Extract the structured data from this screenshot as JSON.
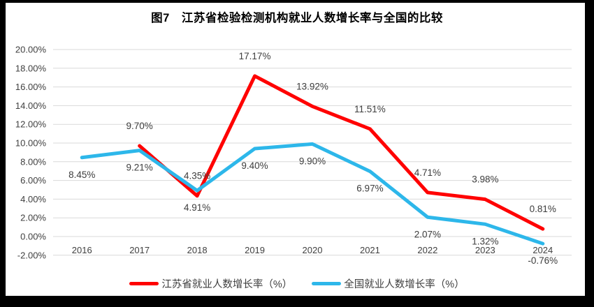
{
  "title": "图7　江苏省检验检测机构就业人数增长率与全国的比较",
  "chart_data": {
    "type": "line",
    "title": "图7　江苏省检验检测机构就业人数增长率与全国的比较",
    "x": [
      "2016",
      "2017",
      "2018",
      "2019",
      "2020",
      "2021",
      "2022",
      "2023",
      "2024"
    ],
    "series": [
      {
        "name": "江苏省就业人数增长率（%）",
        "color": "#FF0000",
        "values": [
          null,
          9.7,
          4.35,
          17.17,
          13.92,
          11.51,
          4.71,
          3.98,
          0.81
        ],
        "labels": [
          "",
          "9.70%",
          "4.35%",
          "17.17%",
          "13.92%",
          "11.51%",
          "4.71%",
          "3.98%",
          "0.81%"
        ],
        "label_position": "above"
      },
      {
        "name": "全国就业人数增长率（%）",
        "color": "#2DB7EA",
        "values": [
          8.45,
          9.21,
          4.91,
          9.4,
          9.9,
          6.97,
          2.07,
          1.32,
          -0.76
        ],
        "labels": [
          "8.45%",
          "9.21%",
          "4.91%",
          "9.40%",
          "9.90%",
          "6.97%",
          "2.07%",
          "1.32%",
          "-0.76%"
        ],
        "label_position": "below"
      }
    ],
    "ylim": [
      -2,
      20
    ],
    "ytick_step": 2,
    "ytick_labels": [
      "20.00%",
      "18.00%",
      "16.00%",
      "14.00%",
      "12.00%",
      "10.00%",
      "8.00%",
      "6.00%",
      "4.00%",
      "2.00%",
      "0.00%",
      "-2.00%"
    ],
    "grid": true,
    "gridline_color": "#D9D9D9",
    "legend_position": "bottom"
  },
  "colors": {
    "frame": "#000000",
    "panel": "#FFFFFF",
    "axis_text": "#404040",
    "label_text": "#3D3D3D"
  }
}
